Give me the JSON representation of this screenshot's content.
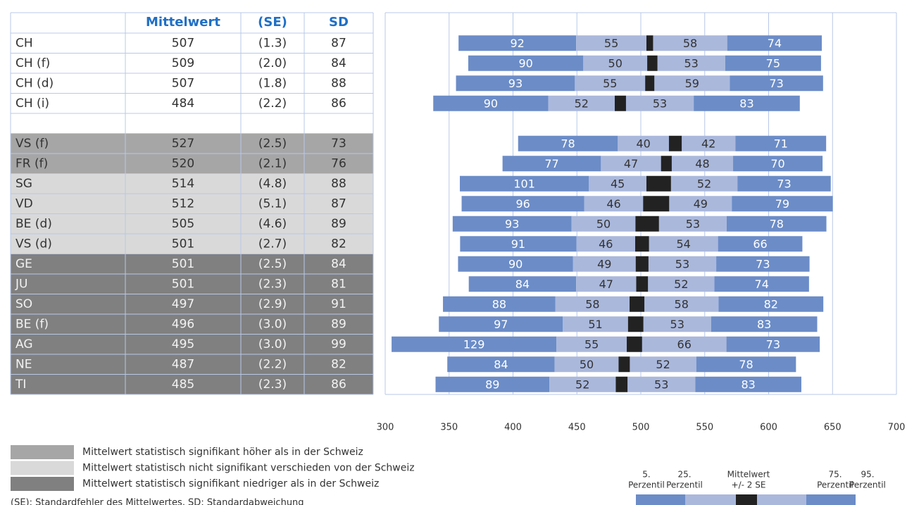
{
  "table": {
    "headers": [
      "Mittelwert",
      "(SE)",
      "SD"
    ],
    "header_color": "#1f6fc5",
    "groups": [
      {
        "fill": "#ffffff",
        "text_color": "#333333",
        "rows": [
          {
            "label": "CH",
            "mean": 507,
            "se": 1.3,
            "se_label": "(1.3)",
            "sd": 87,
            "segments": [
              92,
              55,
              58,
              74
            ]
          },
          {
            "label": "CH (f)",
            "mean": 509,
            "se": 2.0,
            "se_label": "(2.0)",
            "sd": 84,
            "segments": [
              90,
              50,
              53,
              75
            ]
          },
          {
            "label": "CH (d)",
            "mean": 507,
            "se": 1.8,
            "se_label": "(1.8)",
            "sd": 88,
            "segments": [
              93,
              55,
              59,
              73
            ]
          },
          {
            "label": "CH (i)",
            "mean": 484,
            "se": 2.2,
            "se_label": "(2.2)",
            "sd": 86,
            "segments": [
              90,
              52,
              53,
              83
            ]
          }
        ]
      },
      {
        "fill": "#a6a6a6",
        "text_color": "#333333",
        "rows": [
          {
            "label": "VS (f)",
            "mean": 527,
            "se": 2.5,
            "se_label": "(2.5)",
            "sd": 73,
            "segments": [
              78,
              40,
              42,
              71
            ]
          },
          {
            "label": "FR (f)",
            "mean": 520,
            "se": 2.1,
            "se_label": "(2.1)",
            "sd": 76,
            "segments": [
              77,
              47,
              48,
              70
            ]
          }
        ]
      },
      {
        "fill": "#d9d9d9",
        "text_color": "#333333",
        "rows": [
          {
            "label": "SG",
            "mean": 514,
            "se": 4.8,
            "se_label": "(4.8)",
            "sd": 88,
            "segments": [
              101,
              45,
              52,
              73
            ]
          },
          {
            "label": "VD",
            "mean": 512,
            "se": 5.1,
            "se_label": "(5.1)",
            "sd": 87,
            "segments": [
              96,
              46,
              49,
              79
            ]
          },
          {
            "label": "BE (d)",
            "mean": 505,
            "se": 4.6,
            "se_label": "(4.6)",
            "sd": 89,
            "segments": [
              93,
              50,
              53,
              78
            ]
          },
          {
            "label": "VS (d)",
            "mean": 501,
            "se": 2.7,
            "se_label": "(2.7)",
            "sd": 82,
            "segments": [
              91,
              46,
              54,
              66
            ]
          }
        ]
      },
      {
        "fill": "#808080",
        "text_color": "#f2f2f2",
        "rows": [
          {
            "label": "GE",
            "mean": 501,
            "se": 2.5,
            "se_label": "(2.5)",
            "sd": 84,
            "segments": [
              90,
              49,
              53,
              73
            ]
          },
          {
            "label": "JU",
            "mean": 501,
            "se": 2.3,
            "se_label": "(2.3)",
            "sd": 81,
            "segments": [
              84,
              47,
              52,
              74
            ]
          },
          {
            "label": "SO",
            "mean": 497,
            "se": 2.9,
            "se_label": "(2.9)",
            "sd": 91,
            "segments": [
              88,
              58,
              58,
              82
            ]
          },
          {
            "label": "BE (f)",
            "mean": 496,
            "se": 3.0,
            "se_label": "(3.0)",
            "sd": 89,
            "segments": [
              97,
              51,
              53,
              83
            ]
          },
          {
            "label": "AG",
            "mean": 495,
            "se": 3.0,
            "se_label": "(3.0)",
            "sd": 99,
            "segments": [
              129,
              55,
              66,
              73
            ]
          },
          {
            "label": "NE",
            "mean": 487,
            "se": 2.2,
            "se_label": "(2.2)",
            "sd": 82,
            "segments": [
              84,
              50,
              52,
              78
            ]
          },
          {
            "label": "TI",
            "mean": 485,
            "se": 2.3,
            "se_label": "(2.3)",
            "sd": 86,
            "segments": [
              89,
              52,
              53,
              83
            ]
          }
        ]
      }
    ]
  },
  "chart": {
    "xlim": [
      300,
      700
    ],
    "xticks": [
      300,
      350,
      400,
      450,
      500,
      550,
      600,
      650,
      700
    ],
    "segment_colors": [
      "#6b8cc7",
      "#aab8dc",
      "#aab8dc",
      "#6b8cc7"
    ],
    "box_color": "#222222",
    "grid_color": "#b8c8e8"
  },
  "legend": [
    {
      "color": "#a6a6a6",
      "label": "Mittelwert statistisch signifikant höher als in der Schweiz"
    },
    {
      "color": "#d9d9d9",
      "label": "Mittelwert statistisch nicht signifikant verschieden von der Schweiz"
    },
    {
      "color": "#808080",
      "label": "Mittelwert statistisch signifikant niedriger als in der Schweiz"
    }
  ],
  "key": [
    [
      "5.",
      "Perzentil"
    ],
    [
      "25.",
      "Perzentil"
    ],
    [
      "Mittelwert",
      "+/- 2 SE"
    ],
    [
      "75.",
      "Perzentil"
    ],
    [
      "95.",
      "Perzentil"
    ]
  ],
  "footnote": "(SE): Standardfehler des Mittelwertes, SD: Standardabweichung"
}
